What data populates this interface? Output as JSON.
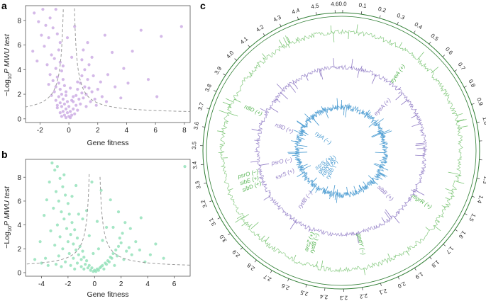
{
  "figure": {
    "panels": [
      {
        "letter": "a"
      },
      {
        "letter": "b"
      },
      {
        "letter": "c"
      }
    ]
  },
  "chart_data": [
    {
      "panel": "a",
      "type": "scatter",
      "xlabel": "Gene fitness",
      "ylabel_parts": [
        "−Log",
        "10",
        "P MWU test"
      ],
      "xlim": [
        -3,
        8.4
      ],
      "ylim": [
        -0.3,
        9.2
      ],
      "xticks": [
        -2,
        0,
        2,
        4,
        6,
        8
      ],
      "yticks": [
        0,
        2,
        4,
        6,
        8
      ],
      "point_color": "#c9a8e2",
      "points": [
        [
          -2.4,
          8.6
        ],
        [
          -2.1,
          7.9
        ],
        [
          -1.8,
          8.9
        ],
        [
          -1.6,
          7.6
        ],
        [
          -1.9,
          6.8
        ],
        [
          -1.3,
          8.2
        ],
        [
          -1.1,
          7.4
        ],
        [
          -2.5,
          5.5
        ],
        [
          -1.7,
          5.9
        ],
        [
          -1.4,
          6.6
        ],
        [
          -0.9,
          8.9
        ],
        [
          -1.2,
          5.2
        ],
        [
          -0.8,
          6.9
        ],
        [
          -2.2,
          4.7
        ],
        [
          -1.5,
          4.4
        ],
        [
          -1.0,
          4.9
        ],
        [
          -0.7,
          5.6
        ],
        [
          -0.9,
          4.1
        ],
        [
          -1.3,
          3.6
        ],
        [
          -0.6,
          4.6
        ],
        [
          -0.8,
          3.4
        ],
        [
          -1.1,
          3.1
        ],
        [
          -0.5,
          3.9
        ],
        [
          -0.7,
          2.9
        ],
        [
          -0.9,
          2.6
        ],
        [
          -0.4,
          3.2
        ],
        [
          -0.6,
          2.4
        ],
        [
          -1.0,
          2.2
        ],
        [
          -0.5,
          2.0
        ],
        [
          -0.3,
          2.7
        ],
        [
          -0.7,
          1.8
        ],
        [
          -0.4,
          1.6
        ],
        [
          -0.6,
          1.3
        ],
        [
          -0.2,
          1.9
        ],
        [
          -0.9,
          1.5
        ],
        [
          -0.3,
          1.2
        ],
        [
          -0.5,
          1.0
        ],
        [
          -0.1,
          1.4
        ],
        [
          -0.8,
          0.9
        ],
        [
          -0.2,
          0.8
        ],
        [
          -0.4,
          0.6
        ],
        [
          0.0,
          1.0
        ],
        [
          -0.6,
          0.5
        ],
        [
          -0.1,
          0.5
        ],
        [
          -0.3,
          0.3
        ],
        [
          0.1,
          0.6
        ],
        [
          -0.5,
          0.2
        ],
        [
          0.0,
          0.2
        ],
        [
          0.2,
          0.3
        ],
        [
          -0.2,
          0.1
        ],
        [
          0.3,
          0.8
        ],
        [
          0.4,
          0.4
        ],
        [
          0.1,
          0.1
        ],
        [
          0.5,
          1.1
        ],
        [
          0.3,
          1.4
        ],
        [
          0.6,
          0.7
        ],
        [
          0.7,
          1.6
        ],
        [
          0.5,
          1.9
        ],
        [
          0.8,
          1.2
        ],
        [
          0.9,
          2.1
        ],
        [
          0.6,
          2.4
        ],
        [
          1.0,
          1.7
        ],
        [
          1.1,
          2.6
        ],
        [
          0.8,
          2.9
        ],
        [
          1.2,
          2.0
        ],
        [
          1.3,
          3.2
        ],
        [
          0.9,
          3.5
        ],
        [
          1.4,
          2.5
        ],
        [
          1.5,
          1.4
        ],
        [
          1.2,
          1.0
        ],
        [
          1.6,
          2.2
        ],
        [
          1.8,
          1.6
        ],
        [
          1.1,
          4.0
        ],
        [
          1.4,
          4.4
        ],
        [
          0.9,
          4.8
        ],
        [
          1.7,
          3.5
        ],
        [
          2.0,
          2.4
        ],
        [
          2.3,
          1.8
        ],
        [
          1.9,
          1.1
        ],
        [
          2.6,
          1.4
        ],
        [
          2.2,
          3.0
        ],
        [
          1.0,
          5.6
        ],
        [
          1.3,
          6.2
        ],
        [
          2.7,
          3.6
        ],
        [
          3.2,
          2.6
        ],
        [
          3.6,
          1.7
        ],
        [
          3.0,
          5.4
        ],
        [
          3.8,
          4.1
        ],
        [
          2.5,
          6.8
        ],
        [
          4.1,
          2.9
        ],
        [
          4.4,
          5.5
        ],
        [
          5.0,
          7.2
        ],
        [
          5.5,
          3.2
        ],
        [
          6.4,
          6.7
        ],
        [
          6.1,
          1.8
        ],
        [
          7.8,
          7.5
        ],
        [
          0.2,
          5.0
        ],
        [
          -0.1,
          6.6
        ],
        [
          0.4,
          7.5
        ],
        [
          -0.2,
          2.2
        ],
        [
          0.1,
          2.5
        ],
        [
          0.3,
          1.8
        ],
        [
          -0.4,
          4.3
        ],
        [
          0.6,
          3.0
        ],
        [
          -0.6,
          6.2
        ],
        [
          1.6,
          5.0
        ],
        [
          -1.4,
          2.8
        ],
        [
          -1.2,
          1.9
        ],
        [
          -0.8,
          1.1
        ],
        [
          0.2,
          1.5
        ]
      ]
    },
    {
      "panel": "b",
      "type": "scatter",
      "xlabel": "Gene fitness",
      "ylabel_parts": [
        "−Log",
        "10",
        "P MWU test"
      ],
      "xlim": [
        -5.2,
        7.2
      ],
      "ylim": [
        -0.3,
        9.5
      ],
      "xticks": [
        -4,
        -2,
        0,
        2,
        4,
        6
      ],
      "yticks": [
        0,
        2,
        4,
        6,
        8
      ],
      "point_color": "#8fe0b7",
      "points": [
        [
          -3.2,
          9.2
        ],
        [
          -3.0,
          8.6
        ],
        [
          -2.8,
          8.9
        ],
        [
          -2.6,
          7.9
        ],
        [
          -3.4,
          7.6
        ],
        [
          -2.4,
          7.2
        ],
        [
          -2.9,
          6.8
        ],
        [
          -2.2,
          6.5
        ],
        [
          -3.6,
          6.1
        ],
        [
          -2.7,
          6.0
        ],
        [
          -2.0,
          5.8
        ],
        [
          -3.1,
          5.4
        ],
        [
          -2.5,
          5.1
        ],
        [
          -1.9,
          4.9
        ],
        [
          -3.8,
          4.8
        ],
        [
          -2.3,
          4.5
        ],
        [
          -1.7,
          4.2
        ],
        [
          -2.8,
          4.0
        ],
        [
          -2.1,
          3.7
        ],
        [
          -1.5,
          3.6
        ],
        [
          -3.3,
          3.5
        ],
        [
          -1.8,
          3.2
        ],
        [
          -2.6,
          3.0
        ],
        [
          -1.3,
          2.9
        ],
        [
          -2.0,
          2.6
        ],
        [
          -1.6,
          2.4
        ],
        [
          -3.0,
          2.3
        ],
        [
          -1.1,
          2.2
        ],
        [
          -2.4,
          2.0
        ],
        [
          -1.4,
          1.9
        ],
        [
          -0.9,
          1.8
        ],
        [
          -1.9,
          1.6
        ],
        [
          -1.2,
          1.5
        ],
        [
          -2.7,
          1.4
        ],
        [
          -0.8,
          1.3
        ],
        [
          -1.6,
          1.2
        ],
        [
          -1.0,
          1.1
        ],
        [
          -0.6,
          1.0
        ],
        [
          -2.2,
          0.9
        ],
        [
          -1.3,
          0.8
        ],
        [
          -0.7,
          0.7
        ],
        [
          -0.4,
          0.6
        ],
        [
          -1.8,
          0.6
        ],
        [
          -1.0,
          0.5
        ],
        [
          -0.5,
          0.4
        ],
        [
          -0.2,
          0.4
        ],
        [
          -1.5,
          0.3
        ],
        [
          -0.8,
          0.3
        ],
        [
          -0.3,
          0.2
        ],
        [
          0.0,
          0.2
        ],
        [
          0.2,
          0.3
        ],
        [
          -0.1,
          0.1
        ],
        [
          0.4,
          0.4
        ],
        [
          0.1,
          0.1
        ],
        [
          0.6,
          0.6
        ],
        [
          0.3,
          0.2
        ],
        [
          0.8,
          0.8
        ],
        [
          0.5,
          0.5
        ],
        [
          1.0,
          1.0
        ],
        [
          0.7,
          0.3
        ],
        [
          1.2,
          1.3
        ],
        [
          0.9,
          0.7
        ],
        [
          1.4,
          1.6
        ],
        [
          1.1,
          0.9
        ],
        [
          1.6,
          1.9
        ],
        [
          1.3,
          1.2
        ],
        [
          1.8,
          2.2
        ],
        [
          1.5,
          0.6
        ],
        [
          2.0,
          2.5
        ],
        [
          1.7,
          1.4
        ],
        [
          2.2,
          1.1
        ],
        [
          1.9,
          2.9
        ],
        [
          2.4,
          1.8
        ],
        [
          2.1,
          3.3
        ],
        [
          2.6,
          2.1
        ],
        [
          2.8,
          1.5
        ],
        [
          1.4,
          3.8
        ],
        [
          2.3,
          4.2
        ],
        [
          3.1,
          2.6
        ],
        [
          3.4,
          1.9
        ],
        [
          1.8,
          5.1
        ],
        [
          2.7,
          3.7
        ],
        [
          3.8,
          0.9
        ],
        [
          4.2,
          1.5
        ],
        [
          3.5,
          4.6
        ],
        [
          4.6,
          2.4
        ],
        [
          5.2,
          1.2
        ],
        [
          6.8,
          8.9
        ],
        [
          -4.5,
          1.1
        ],
        [
          -4.1,
          2.6
        ],
        [
          -3.7,
          1.2
        ],
        [
          -3.5,
          0.6
        ],
        [
          -4.0,
          0.8
        ],
        [
          -2.9,
          0.7
        ],
        [
          -2.5,
          0.5
        ],
        [
          -0.9,
          4.5
        ],
        [
          -0.4,
          3.1
        ],
        [
          0.3,
          2.0
        ],
        [
          0.6,
          2.7
        ],
        [
          -0.1,
          1.6
        ],
        [
          0.9,
          3.8
        ],
        [
          -0.6,
          5.2
        ],
        [
          -1.2,
          4.9
        ],
        [
          -1.7,
          6.4
        ],
        [
          0.2,
          4.3
        ],
        [
          1.2,
          6.1
        ],
        [
          -2.3,
          8.2
        ],
        [
          -1.4,
          7.3
        ],
        [
          0.5,
          6.9
        ],
        [
          -0.2,
          7.6
        ]
      ]
    },
    {
      "panel": "c",
      "type": "circular-genome",
      "tick_labels": [
        "0.0",
        "0.1",
        "0.2",
        "0.3",
        "0.4",
        "0.5",
        "0.6",
        "0.7",
        "0.8",
        "0.9",
        "1.0",
        "1.1",
        "1.2",
        "1.3",
        "1.4",
        "1.5",
        "1.6",
        "1.7",
        "1.8",
        "1.9",
        "2.0",
        "2.1",
        "2.2",
        "2.3",
        "2.4",
        "2.5",
        "2.6",
        "2.7",
        "2.8",
        "2.9",
        "3.0",
        "3.1",
        "3.2",
        "3.3",
        "3.4",
        "3.5",
        "3.6",
        "3.7",
        "3.8",
        "3.9",
        "4.0",
        "4.1",
        "4.2",
        "4.3",
        "4.4",
        "4.5",
        "4.6"
      ],
      "genome_length": 4.64,
      "rings": [
        {
          "name": "outer",
          "color": "#2e7d32"
        },
        {
          "name": "green",
          "color": "#7cc576"
        },
        {
          "name": "purple",
          "color": "#8f7ac4"
        },
        {
          "name": "blue",
          "color": "#4a9bd1"
        }
      ],
      "gene_labels": [
        {
          "text": "eyeA (+)",
          "ring": "green",
          "pos": 0.46,
          "color": "#56b452"
        },
        {
          "text": "eyeA (+)",
          "ring": "purple",
          "pos": 0.55,
          "color": "#8f7ac4"
        },
        {
          "text": "mgrR (+)",
          "ring": "green",
          "pos": 1.57,
          "color": "#56b452"
        },
        {
          "text": "sibB (+)",
          "ring": "purple",
          "pos": 1.72,
          "color": "#8f7ac4"
        },
        {
          "text": "gadY (−)",
          "ring": "green",
          "pos": 2.16,
          "color": "#56b452"
        },
        {
          "text": "arcZ (+)",
          "ring": "green",
          "pos": 2.56,
          "color": "#56b452"
        },
        {
          "text": "rydB (−)",
          "ring": "green",
          "pos": 2.52,
          "color": "#56b452"
        },
        {
          "text": "rydB (−)",
          "ring": "purple",
          "pos": 2.78,
          "color": "#8f7ac4"
        },
        {
          "text": "sibD (+)",
          "ring": "green",
          "pos": 3.19,
          "color": "#56b452"
        },
        {
          "text": "sibE (+)",
          "ring": "green",
          "pos": 3.24,
          "color": "#56b452"
        },
        {
          "text": "psrO (−)",
          "ring": "green",
          "pos": 3.29,
          "color": "#56b452"
        },
        {
          "text": "ssrS (+)",
          "ring": "purple",
          "pos": 3.18,
          "color": "#8f7ac4"
        },
        {
          "text": "psrO (−)",
          "ring": "purple",
          "pos": 3.34,
          "color": "#8f7ac4"
        },
        {
          "text": "rdlD (+)",
          "ring": "green",
          "pos": 3.79,
          "color": "#56b452"
        },
        {
          "text": "rdlD (+)",
          "ring": "purple",
          "pos": 3.75,
          "color": "#8f7ac4"
        },
        {
          "text": "rybB (−)",
          "ring": "blue",
          "pos": 2.65,
          "color": "#4a9bd1"
        },
        {
          "text": "rdlD (+)",
          "ring": "blue",
          "pos": 2.78,
          "color": "#4a9bd1"
        },
        {
          "text": "glcoB (+)",
          "ring": "blue",
          "pos": 2.9,
          "color": "#4a9bd1"
        },
        {
          "text": "ssrS (+)",
          "ring": "blue",
          "pos": 3.02,
          "color": "#4a9bd1"
        },
        {
          "text": "ryjA (−)",
          "ring": "blue",
          "pos": 3.92,
          "color": "#4a9bd1"
        }
      ]
    }
  ]
}
